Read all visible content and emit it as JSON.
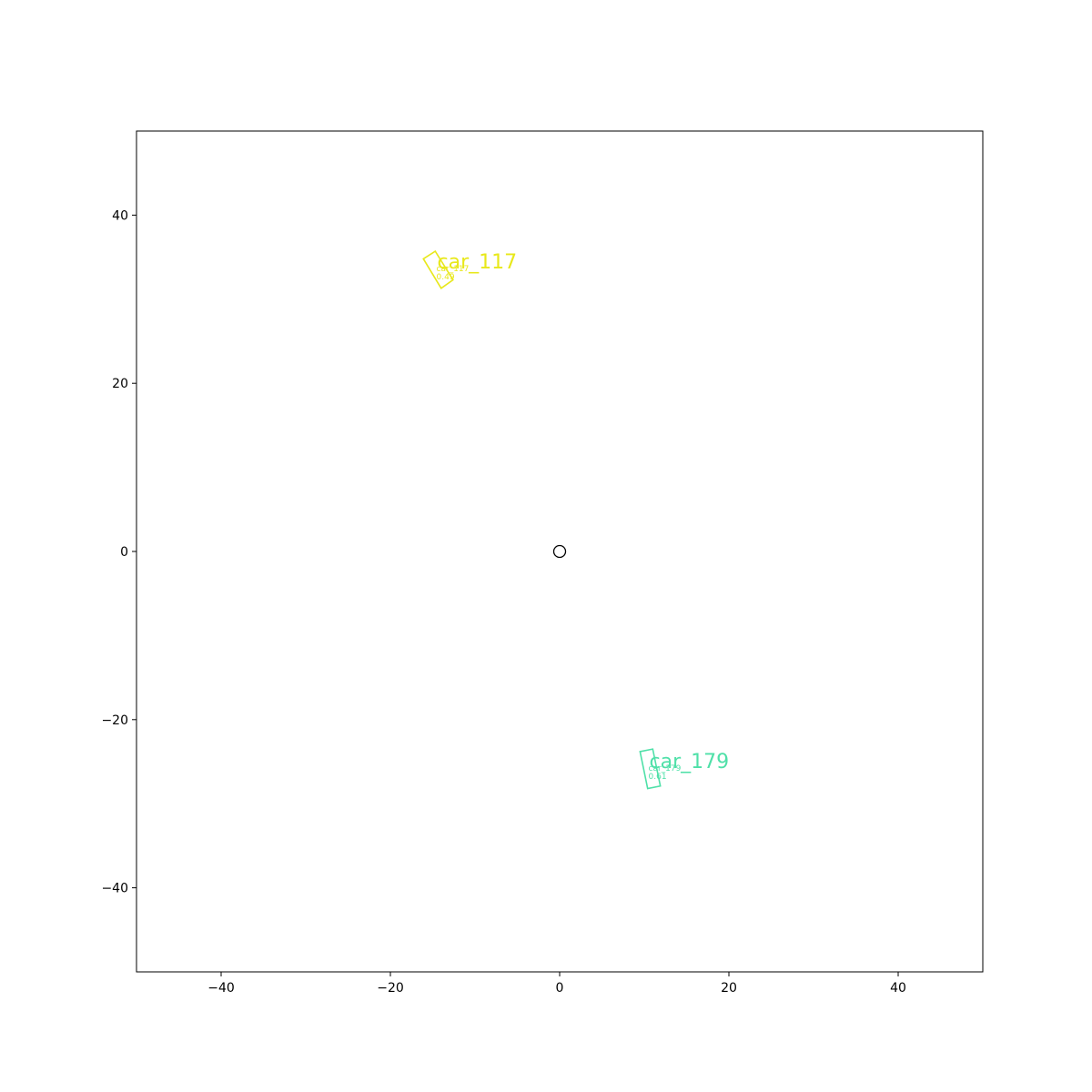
{
  "chart_data": {
    "type": "scatter",
    "title": "",
    "xlabel": "",
    "ylabel": "",
    "xlim": [
      -50,
      50
    ],
    "ylim": [
      -50,
      50
    ],
    "grid": false,
    "x_ticks": [
      -40,
      -20,
      0,
      20,
      40
    ],
    "y_ticks": [
      -40,
      -20,
      0,
      20,
      40
    ],
    "x_tick_labels": [
      "−40",
      "−20",
      "0",
      "20",
      "40"
    ],
    "y_tick_labels": [
      "−40",
      "−20",
      "0",
      "20",
      "40"
    ],
    "ego": {
      "x": 0,
      "y": 0,
      "marker": "circle",
      "color": "#000000"
    },
    "objects": [
      {
        "name": "car_117",
        "small_id": "car_117",
        "small_value": "0.49",
        "color": "#e8e81a",
        "corners": [
          [
            -16.1,
            34.8
          ],
          [
            -14.7,
            35.7
          ],
          [
            -12.6,
            32.3
          ],
          [
            -14.0,
            31.3
          ]
        ]
      },
      {
        "name": "car_179",
        "small_id": "car_179",
        "small_value": "0.61",
        "color": "#4fe0a8",
        "corners": [
          [
            9.5,
            -23.8
          ],
          [
            11.0,
            -23.5
          ],
          [
            11.9,
            -27.9
          ],
          [
            10.4,
            -28.2
          ]
        ]
      }
    ]
  }
}
